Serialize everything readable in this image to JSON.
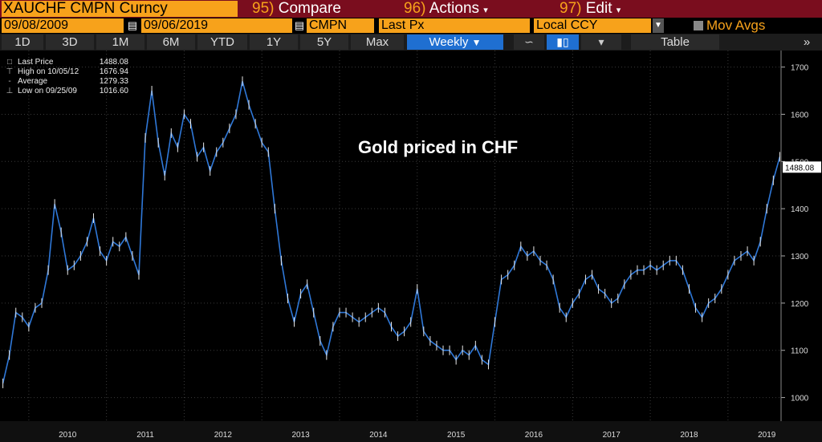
{
  "toolbar": {
    "ticker": "XAUCHF CMPN Curncy",
    "compare": {
      "num": "95)",
      "label": "Compare"
    },
    "actions": {
      "num": "96)",
      "label": "Actions"
    },
    "edit": {
      "num": "97)",
      "label": "Edit"
    }
  },
  "fields": {
    "start_date": "09/08/2009",
    "end_date": "09/06/2019",
    "source": "CMPN",
    "field": "Last Px",
    "currency": "Local CCY",
    "mov_avgs": "Mov Avgs"
  },
  "tabs": [
    "1D",
    "3D",
    "1M",
    "6M",
    "YTD",
    "1Y",
    "5Y",
    "Max"
  ],
  "frequency": "Weekly",
  "table_label": "Table",
  "legend": [
    {
      "label": "Last Price",
      "value": "1488.08"
    },
    {
      "label": "High on 10/05/12",
      "value": "1676.94"
    },
    {
      "label": "Average",
      "value": "1279.33"
    },
    {
      "label": "Low on 09/25/09",
      "value": "1016.60"
    }
  ],
  "chart_data": {
    "type": "line",
    "title": "Gold priced in CHF",
    "x": [
      "2009-09",
      "2009-10",
      "2009-11",
      "2009-12",
      "2010-01",
      "2010-02",
      "2010-03",
      "2010-04",
      "2010-05",
      "2010-06",
      "2010-07",
      "2010-08",
      "2010-09",
      "2010-10",
      "2010-11",
      "2010-12",
      "2011-01",
      "2011-02",
      "2011-03",
      "2011-04",
      "2011-05",
      "2011-06",
      "2011-07",
      "2011-08",
      "2011-09",
      "2011-10",
      "2011-11",
      "2011-12",
      "2012-01",
      "2012-02",
      "2012-03",
      "2012-04",
      "2012-05",
      "2012-06",
      "2012-07",
      "2012-08",
      "2012-09",
      "2012-10",
      "2012-11",
      "2012-12",
      "2013-01",
      "2013-02",
      "2013-03",
      "2013-04",
      "2013-05",
      "2013-06",
      "2013-07",
      "2013-08",
      "2013-09",
      "2013-10",
      "2013-11",
      "2013-12",
      "2014-01",
      "2014-02",
      "2014-03",
      "2014-04",
      "2014-05",
      "2014-06",
      "2014-07",
      "2014-08",
      "2014-09",
      "2014-10",
      "2014-11",
      "2014-12",
      "2015-01",
      "2015-02",
      "2015-03",
      "2015-04",
      "2015-05",
      "2015-06",
      "2015-07",
      "2015-08",
      "2015-09",
      "2015-10",
      "2015-11",
      "2015-12",
      "2016-01",
      "2016-02",
      "2016-03",
      "2016-04",
      "2016-05",
      "2016-06",
      "2016-07",
      "2016-08",
      "2016-09",
      "2016-10",
      "2016-11",
      "2016-12",
      "2017-01",
      "2017-02",
      "2017-03",
      "2017-04",
      "2017-05",
      "2017-06",
      "2017-07",
      "2017-08",
      "2017-09",
      "2017-10",
      "2017-11",
      "2017-12",
      "2018-01",
      "2018-02",
      "2018-03",
      "2018-04",
      "2018-05",
      "2018-06",
      "2018-07",
      "2018-08",
      "2018-09",
      "2018-10",
      "2018-11",
      "2018-12",
      "2019-01",
      "2019-02",
      "2019-03",
      "2019-04",
      "2019-05",
      "2019-06",
      "2019-07",
      "2019-08",
      "2019-09"
    ],
    "series": [
      {
        "values": [
          1030,
          1090,
          1180,
          1170,
          1150,
          1190,
          1200,
          1270,
          1410,
          1350,
          1270,
          1280,
          1300,
          1330,
          1380,
          1310,
          1290,
          1330,
          1320,
          1340,
          1300,
          1260,
          1550,
          1650,
          1540,
          1470,
          1560,
          1530,
          1600,
          1580,
          1510,
          1530,
          1480,
          1520,
          1540,
          1570,
          1600,
          1670,
          1620,
          1580,
          1540,
          1520,
          1400,
          1290,
          1210,
          1160,
          1220,
          1240,
          1180,
          1120,
          1090,
          1150,
          1180,
          1180,
          1170,
          1160,
          1170,
          1180,
          1190,
          1180,
          1150,
          1130,
          1140,
          1160,
          1230,
          1140,
          1120,
          1110,
          1100,
          1100,
          1080,
          1100,
          1090,
          1110,
          1080,
          1070,
          1160,
          1250,
          1260,
          1280,
          1320,
          1300,
          1310,
          1290,
          1280,
          1250,
          1190,
          1170,
          1200,
          1220,
          1250,
          1260,
          1230,
          1220,
          1200,
          1210,
          1240,
          1260,
          1270,
          1270,
          1280,
          1270,
          1280,
          1290,
          1290,
          1270,
          1230,
          1190,
          1170,
          1200,
          1210,
          1230,
          1260,
          1290,
          1300,
          1310,
          1290,
          1330,
          1400,
          1460,
          1510
        ]
      }
    ],
    "y_ticks": [
      1000,
      1100,
      1200,
      1300,
      1400,
      1500,
      1600,
      1700
    ],
    "x_ticks": [
      "2010",
      "2011",
      "2012",
      "2013",
      "2014",
      "2015",
      "2016",
      "2017",
      "2018",
      "2019"
    ],
    "last_value_label": "1488.08",
    "ylim": [
      950,
      1735
    ],
    "grid": true,
    "colors": {
      "line": "#2f78d8",
      "background": "#000000",
      "grid": "#3a3a3a"
    }
  }
}
